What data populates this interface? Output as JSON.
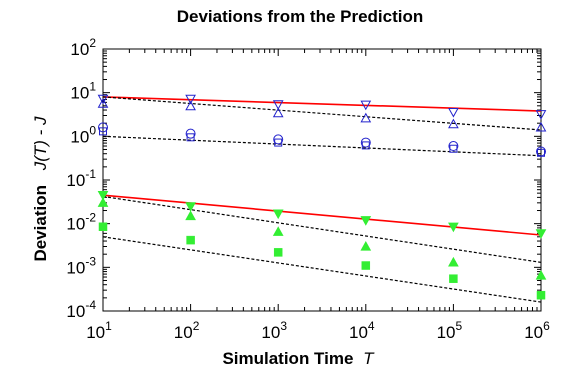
{
  "chart_data": {
    "type": "scatter",
    "title": "Deviations from the Prediction",
    "xlabel": {
      "main": "Simulation Time",
      "symbol": "T"
    },
    "ylabel": {
      "main": "Deviation",
      "symbol": "J(T) - J"
    },
    "xscale": "log",
    "yscale": "log",
    "xlim": [
      10,
      1000000
    ],
    "ylim": [
      0.0001,
      100
    ],
    "grid": false,
    "legend": "none",
    "x_ticks": [
      {
        "base": "10",
        "exp": "1"
      },
      {
        "base": "10",
        "exp": "2"
      },
      {
        "base": "10",
        "exp": "3"
      },
      {
        "base": "10",
        "exp": "4"
      },
      {
        "base": "10",
        "exp": "5"
      },
      {
        "base": "10",
        "exp": "6"
      }
    ],
    "y_ticks": [
      {
        "value": 0.0001,
        "base": "10",
        "exp": "-4"
      },
      {
        "value": 0.001,
        "base": "10",
        "exp": "-3"
      },
      {
        "value": 0.01,
        "base": "10",
        "exp": "-2"
      },
      {
        "value": 0.1,
        "base": "10",
        "exp": "-1"
      },
      {
        "value": 1,
        "base": "10",
        "exp": "0"
      },
      {
        "value": 10,
        "base": "10",
        "exp": "1"
      },
      {
        "value": 100,
        "base": "10",
        "exp": "2"
      }
    ],
    "x": [
      10,
      100,
      1000,
      10000,
      100000,
      1000000
    ],
    "series": [
      {
        "marker": "triangle-down",
        "color": "#2222cc",
        "values": [
          7.2,
          7.2,
          5.4,
          5.3,
          3.6,
          3.2
        ]
      },
      {
        "marker": "triangle-up",
        "color": "#2222cc",
        "values": [
          5.6,
          4.9,
          3.4,
          2.6,
          1.9,
          1.6
        ]
      },
      {
        "marker": "circle",
        "color": "#2222cc",
        "values": [
          1.6,
          1.15,
          0.85,
          0.72,
          0.6,
          0.45
        ]
      },
      {
        "marker": "square-open",
        "color": "#2222cc",
        "values": [
          1.3,
          0.95,
          0.72,
          0.62,
          0.52,
          0.42
        ]
      },
      {
        "marker": "triangle-down",
        "color": "#33ee33",
        "values": [
          0.045,
          0.025,
          0.017,
          0.012,
          0.0085,
          0.006
        ]
      },
      {
        "marker": "triangle-up",
        "color": "#33ee33",
        "values": [
          0.03,
          0.015,
          0.0065,
          0.003,
          0.0013,
          0.00065
        ]
      },
      {
        "marker": "square",
        "color": "#33ee33",
        "values": [
          0.0085,
          0.0042,
          0.0022,
          0.0011,
          0.00055,
          0.00023
        ]
      }
    ],
    "lines": [
      {
        "style": "solid",
        "color": "#ff0000",
        "y_start": 8.0,
        "y_end": 3.8
      },
      {
        "style": "dashed",
        "color": "#000000",
        "y_start": 8.0,
        "y_end": 1.4
      },
      {
        "style": "dashed",
        "color": "#000000",
        "y_start": 1.0,
        "y_end": 0.36
      },
      {
        "style": "solid",
        "color": "#ff0000",
        "y_start": 0.045,
        "y_end": 0.0055
      },
      {
        "style": "dashed",
        "color": "#000000",
        "y_start": 0.042,
        "y_end": 0.0013
      },
      {
        "style": "dashed",
        "color": "#000000",
        "y_start": 0.005,
        "y_end": 0.00016
      }
    ]
  }
}
